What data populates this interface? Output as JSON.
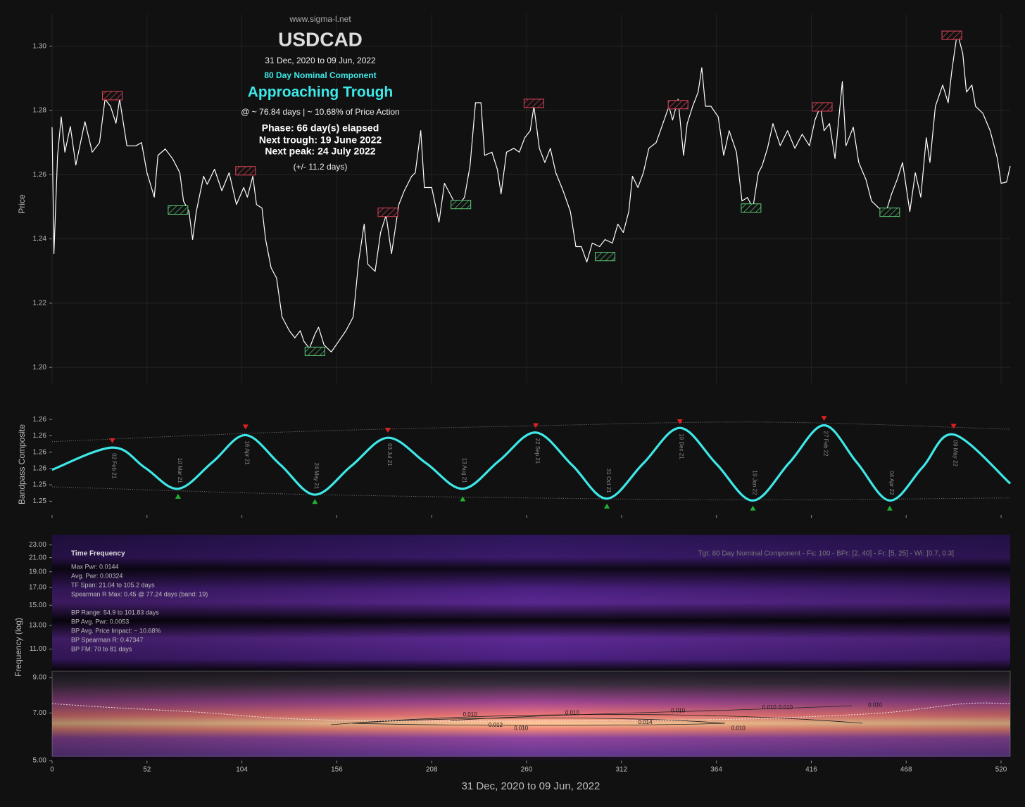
{
  "chart_data": [
    {
      "type": "line",
      "annotations": {
        "site": "www.sigma-l.net",
        "title": "USDCAD",
        "subtitle": "31 Dec, 2020 to 09 Jun, 2022",
        "component": "80 Day Nominal Component",
        "status": "Approaching Trough",
        "cycle_info": "@ ~ 76.84 days | ~ 10.68% of Price Action",
        "phase": "Phase: 66 day(s) elapsed",
        "next_trough": "Next trough: 19 June 2022",
        "next_peak": "Next peak: 24 July 2022",
        "tolerance": "(+/- 11.2 days)"
      },
      "ylabel": "Price",
      "xlim": [
        0,
        525
      ],
      "ylim": [
        1.195,
        1.31
      ],
      "yticks": [
        {
          "value": 1.2,
          "label": "1.20"
        },
        {
          "value": 1.22,
          "label": "1.22"
        },
        {
          "value": 1.24,
          "label": "1.24"
        },
        {
          "value": 1.26,
          "label": "1.26"
        },
        {
          "value": 1.28,
          "label": "1.28"
        },
        {
          "value": 1.3,
          "label": "1.30"
        }
      ],
      "grid": true,
      "series": [
        {
          "color": "#ffffff",
          "x": [
            0,
            1,
            3,
            5,
            7,
            10,
            13,
            18,
            22,
            26,
            29,
            32,
            35,
            37,
            41,
            46,
            49,
            52,
            56,
            58,
            62,
            66,
            70,
            72,
            75,
            77,
            79,
            83,
            85,
            89,
            93,
            97,
            101,
            105,
            107,
            110,
            112,
            115,
            117,
            120,
            123,
            126,
            130,
            133,
            136,
            138,
            141,
            144,
            146,
            149,
            153,
            157,
            161,
            165,
            168,
            171,
            173,
            177,
            180,
            183,
            186,
            190,
            193,
            197,
            199,
            202,
            204,
            208,
            212,
            215,
            219,
            222,
            226,
            229,
            232,
            235,
            237,
            241,
            244,
            246,
            249,
            253,
            256,
            259,
            262,
            264,
            267,
            270,
            273,
            276,
            280,
            284,
            287,
            290,
            293,
            296,
            300,
            303,
            307,
            310,
            313,
            316,
            318,
            321,
            324,
            327,
            331,
            334,
            338,
            340,
            343,
            346,
            348,
            351,
            354,
            356,
            358,
            361,
            365,
            368,
            371,
            375,
            378,
            381,
            384,
            387,
            389,
            392,
            395,
            399,
            403,
            407,
            411,
            415,
            418,
            421,
            423,
            426,
            429,
            433,
            435,
            439,
            442,
            446,
            449,
            453,
            457,
            460,
            463,
            466,
            470,
            473,
            476,
            479,
            481,
            484,
            488,
            491,
            493,
            496,
            499,
            501,
            504,
            506,
            510,
            514,
            518,
            520,
            523,
            525
          ],
          "values": [
            1.2748,
            1.2354,
            1.266,
            1.278,
            1.267,
            1.275,
            1.263,
            1.2765,
            1.267,
            1.27,
            1.2835,
            1.2813,
            1.276,
            1.2835,
            1.269,
            1.269,
            1.27,
            1.2606,
            1.253,
            1.266,
            1.268,
            1.265,
            1.2606,
            1.2518,
            1.2485,
            1.2398,
            1.2485,
            1.2595,
            1.257,
            1.2617,
            1.255,
            1.2606,
            1.2507,
            1.256,
            1.253,
            1.2595,
            1.2507,
            1.2496,
            1.2398,
            1.231,
            1.2278,
            1.2157,
            1.2114,
            1.2092,
            1.2114,
            1.2081,
            1.2059,
            1.2103,
            1.2125,
            1.207,
            1.2048,
            1.2081,
            1.2114,
            1.2157,
            1.2332,
            1.2446,
            1.2321,
            1.2299,
            1.242,
            1.2474,
            1.2354,
            1.2507,
            1.255,
            1.2595,
            1.2606,
            1.2737,
            1.256,
            1.256,
            1.2452,
            1.2573,
            1.253,
            1.2496,
            1.253,
            1.2627,
            1.2824,
            1.2824,
            1.266,
            1.267,
            1.2616,
            1.254,
            1.267,
            1.2682,
            1.267,
            1.2715,
            1.2737,
            1.2813,
            1.2682,
            1.2638,
            1.2682,
            1.2606,
            1.255,
            1.2485,
            1.2376,
            1.2376,
            1.2328,
            1.2387,
            1.2376,
            1.2398,
            1.2387,
            1.2446,
            1.242,
            1.2485,
            1.2595,
            1.256,
            1.2606,
            1.2682,
            1.27,
            1.2748,
            1.2813,
            1.277,
            1.2835,
            1.266,
            1.2759,
            1.2813,
            1.2857,
            1.2933,
            1.2813,
            1.2813,
            1.278,
            1.266,
            1.2737,
            1.267,
            1.2518,
            1.2529,
            1.2496,
            1.2606,
            1.2627,
            1.2682,
            1.2759,
            1.269,
            1.2737,
            1.2682,
            1.2726,
            1.269,
            1.277,
            1.2813,
            1.2737,
            1.2759,
            1.265,
            1.289,
            1.269,
            1.2748,
            1.2638,
            1.2584,
            1.2518,
            1.2496,
            1.2485,
            1.254,
            1.2584,
            1.2638,
            1.2485,
            1.2606,
            1.253,
            1.2715,
            1.2638,
            1.2813,
            1.2879,
            1.2824,
            1.2923,
            1.3043,
            1.2977,
            1.2857,
            1.2879,
            1.2813,
            1.2791,
            1.2737,
            1.265,
            1.2573,
            1.2577,
            1.2627
          ]
        }
      ],
      "peak_boxes": {
        "color": "#e0455a",
        "x": [
          33,
          106,
          184,
          264,
          343,
          422,
          493
        ],
        "values": [
          1.2846,
          1.2612,
          1.2483,
          1.2822,
          1.2818,
          1.2811,
          1.3034
        ]
      },
      "trough_boxes": {
        "color": "#5fd07a",
        "x": [
          69,
          144,
          224,
          303,
          383,
          459
        ],
        "values": [
          1.249,
          1.205,
          1.2507,
          1.2345,
          1.2496,
          1.2483
        ]
      }
    },
    {
      "type": "line",
      "ylabel": "Bandpass Composite",
      "xlim": [
        0,
        525
      ],
      "ylim": [
        1.2496,
        1.2652
      ],
      "yticks": [
        {
          "value": 1.2515,
          "label": "1.25"
        },
        {
          "value": 1.254,
          "label": "1.25"
        },
        {
          "value": 1.2565,
          "label": "1.26"
        },
        {
          "value": 1.259,
          "label": "1.26"
        },
        {
          "value": 1.2615,
          "label": "1.26"
        },
        {
          "value": 1.264,
          "label": "1.26"
        }
      ],
      "series": [
        {
          "color": "#3ee8e8",
          "x": [
            0,
            33,
            51,
            69,
            88,
            106,
            125,
            144,
            164,
            184,
            205,
            225,
            245,
            265,
            285,
            304,
            324,
            344,
            364,
            384,
            404,
            423,
            441,
            459,
            477,
            494,
            525
          ],
          "values": [
            1.2563,
            1.2597,
            1.2566,
            1.2534,
            1.2575,
            1.2616,
            1.2571,
            1.2525,
            1.2569,
            1.2612,
            1.2573,
            1.2534,
            1.2577,
            1.262,
            1.257,
            1.2519,
            1.2573,
            1.2627,
            1.2572,
            1.2516,
            1.2574,
            1.2631,
            1.2574,
            1.2516,
            1.2567,
            1.2617,
            1.2542
          ]
        }
      ],
      "envelope": [
        {
          "color": "#777777",
          "x": [
            0,
            130,
            260,
            390,
            525
          ],
          "values": [
            1.2606,
            1.2621,
            1.263,
            1.2636,
            1.2625
          ]
        },
        {
          "color": "#777777",
          "x": [
            0,
            130,
            260,
            390,
            525
          ],
          "values": [
            1.2537,
            1.2526,
            1.252,
            1.2517,
            1.252
          ]
        }
      ],
      "peak_markers": {
        "color": "#e02020",
        "x": [
          33,
          106,
          184,
          265,
          344,
          423,
          494
        ],
        "values": [
          1.2608,
          1.2629,
          1.2624,
          1.2631,
          1.2637,
          1.2642,
          1.263
        ]
      },
      "trough_markers": {
        "color": "#22b030",
        "x": [
          69,
          144,
          225,
          304,
          384,
          459
        ],
        "values": [
          1.2522,
          1.2514,
          1.2518,
          1.2507,
          1.2504,
          1.2504
        ]
      },
      "cycle_labels": {
        "x": [
          33,
          69,
          106,
          144,
          184,
          225,
          265,
          304,
          344,
          384,
          423,
          459,
          494
        ],
        "labels": [
          "02 Feb 21",
          "10 Mar 21",
          "16 Apr 21",
          "24 May 21",
          "03 Jul 21",
          "13 Aug 21",
          "22 Sep 21",
          "31 Oct 21",
          "10 Dec 21",
          "19 Jan 22",
          "27 Feb 22",
          "04 Apr 22",
          "09 May 22"
        ]
      }
    },
    {
      "type": "heatmap",
      "xlabel": "31 Dec, 2020 to 09 Jun, 2022",
      "ylabel": "Frequency (log)",
      "xlim": [
        0,
        525
      ],
      "xticks": [
        0,
        52,
        104,
        156,
        208,
        260,
        312,
        364,
        416,
        468,
        520
      ],
      "ylim": [
        5,
        24.7
      ],
      "log_y": true,
      "yticks": [
        {
          "value": 5,
          "label": "5.00"
        },
        {
          "value": 7,
          "label": "7.00"
        },
        {
          "value": 9,
          "label": "9.00"
        },
        {
          "value": 11,
          "label": "11.00"
        },
        {
          "value": 13,
          "label": "13.00"
        },
        {
          "value": 15,
          "label": "15.00"
        },
        {
          "value": 17,
          "label": "17.00"
        },
        {
          "value": 19,
          "label": "19.00"
        },
        {
          "value": 21,
          "label": "21.00"
        },
        {
          "value": 23,
          "label": "23.00"
        }
      ],
      "stats_title": "Time Frequency",
      "stats": [
        "Max Pwr: 0.0144",
        "Avg. Pwr: 0.00324",
        "TF Span: 21.04 to 105.2 days",
        "Spearman R Max: 0.45 @ 77.24 days (band: 19)"
      ],
      "bp_stats": [
        "BP Range: 54.9 to 101.83 days",
        "BP Avg. Pwr: 0.0053",
        "BP Avg. Price Impact: ~ 10.68%",
        "BP Spearman R: 0.47347",
        "BP FM: 70 to 81 days"
      ],
      "target_note": "Tgt: 80 Day Nominal Component - Fs: 100 - BPr: [2, 40] - Fr: [5, 25] - Wi: [0.7, 0.3]",
      "contour_labels": [
        {
          "x": 229,
          "y": 6.91,
          "value": 0.01,
          "label": "0.010"
        },
        {
          "x": 285,
          "y": 7.0,
          "value": 0.01,
          "label": "0.010"
        },
        {
          "x": 343,
          "y": 7.11,
          "value": 0.01,
          "label": "0.010"
        },
        {
          "x": 393,
          "y": 7.26,
          "value": 0.01,
          "label": "0.010"
        },
        {
          "x": 402,
          "y": 7.26,
          "value": 0.01,
          "label": "0.010"
        },
        {
          "x": 451,
          "y": 7.4,
          "value": 0.01,
          "label": "0.010"
        },
        {
          "x": 243,
          "y": 6.41,
          "value": 0.012,
          "label": "0.012"
        },
        {
          "x": 257,
          "y": 6.28,
          "value": 0.01,
          "label": "0.010"
        },
        {
          "x": 325,
          "y": 6.54,
          "value": 0.014,
          "label": "0.014"
        },
        {
          "x": 376,
          "y": 6.28,
          "value": 0.01,
          "label": "0.010"
        }
      ],
      "dominant_frequency": {
        "color": "#ffffff",
        "x": [
          0,
          30,
          80,
          120,
          160,
          200,
          260,
          320,
          380,
          420,
          460,
          500,
          525
        ],
        "values": [
          7.48,
          7.29,
          7.04,
          6.77,
          6.64,
          6.61,
          6.61,
          6.64,
          6.71,
          6.84,
          7.04,
          7.48,
          7.48
        ]
      }
    }
  ]
}
